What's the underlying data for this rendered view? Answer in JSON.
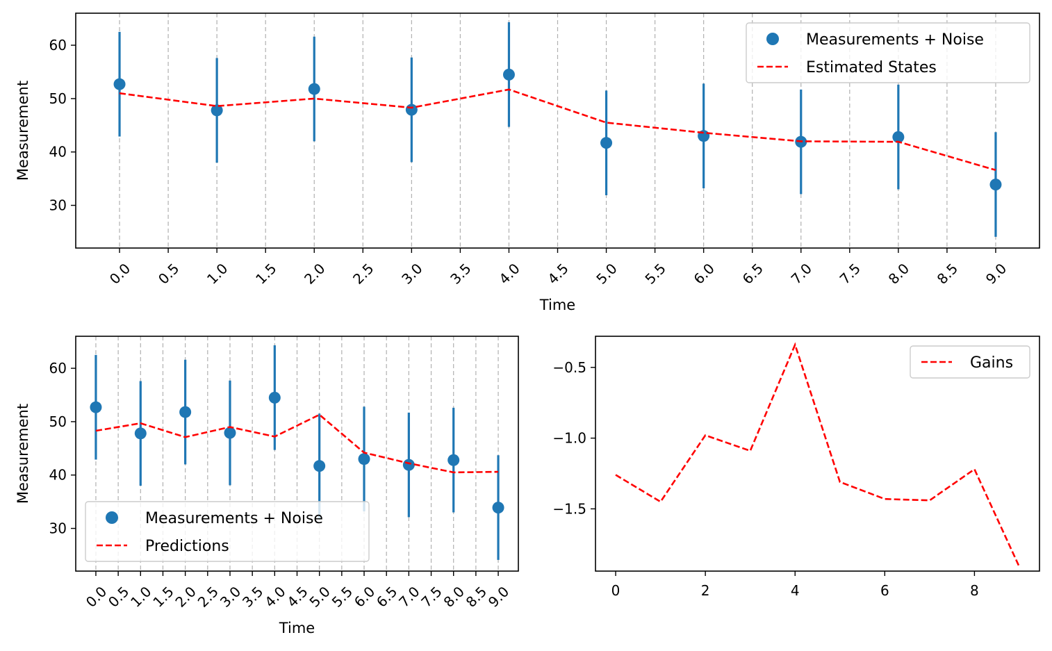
{
  "chart_data": [
    {
      "type": "scatter",
      "xlabel": "Time",
      "ylabel": "Measurement",
      "xlim": [
        -0.45,
        9.45
      ],
      "ylim": [
        22,
        66
      ],
      "xticks": [
        0.0,
        0.5,
        1.0,
        1.5,
        2.0,
        2.5,
        3.0,
        3.5,
        4.0,
        4.5,
        5.0,
        5.5,
        6.0,
        6.5,
        7.0,
        7.5,
        8.0,
        8.5,
        9.0
      ],
      "xtick_labels": [
        "0.0",
        "0.5",
        "1.0",
        "1.5",
        "2.0",
        "2.5",
        "3.0",
        "3.5",
        "4.0",
        "4.5",
        "5.0",
        "5.5",
        "6.0",
        "6.5",
        "7.0",
        "7.5",
        "8.0",
        "8.5",
        "9.0"
      ],
      "yticks": [
        30,
        40,
        50,
        60
      ],
      "ytick_labels": [
        "30",
        "40",
        "50",
        "60"
      ],
      "grid": "x-dashed",
      "legend_position": "top-right",
      "x": [
        0,
        1,
        2,
        3,
        4,
        5,
        6,
        7,
        8,
        9
      ],
      "series": [
        {
          "name": "Measurements + Noise",
          "kind": "scatter-errorbar",
          "color": "#1f77b4",
          "values": [
            52.7,
            47.8,
            51.8,
            47.9,
            54.5,
            41.7,
            43.0,
            41.9,
            42.8,
            33.9
          ],
          "error": 9.8
        },
        {
          "name": "Estimated States",
          "kind": "line-dashed",
          "color": "#ff0000",
          "values": [
            51.0,
            48.6,
            50.0,
            48.3,
            51.7,
            45.5,
            43.6,
            42.0,
            41.9,
            36.6
          ]
        }
      ]
    },
    {
      "type": "scatter",
      "xlabel": "Time",
      "ylabel": "Measurement",
      "xlim": [
        -0.45,
        9.45
      ],
      "ylim": [
        22,
        66
      ],
      "xticks": [
        0.0,
        0.5,
        1.0,
        1.5,
        2.0,
        2.5,
        3.0,
        3.5,
        4.0,
        4.5,
        5.0,
        5.5,
        6.0,
        6.5,
        7.0,
        7.5,
        8.0,
        8.5,
        9.0
      ],
      "xtick_labels": [
        "0.0",
        "0.5",
        "1.0",
        "1.5",
        "2.0",
        "2.5",
        "3.0",
        "3.5",
        "4.0",
        "4.5",
        "5.0",
        "5.5",
        "6.0",
        "6.5",
        "7.0",
        "7.5",
        "8.0",
        "8.5",
        "9.0"
      ],
      "yticks": [
        30,
        40,
        50,
        60
      ],
      "ytick_labels": [
        "30",
        "40",
        "50",
        "60"
      ],
      "grid": "x-dashed",
      "legend_position": "bottom-left",
      "x": [
        0,
        1,
        2,
        3,
        4,
        5,
        6,
        7,
        8,
        9
      ],
      "series": [
        {
          "name": "Measurements + Noise",
          "kind": "scatter-errorbar",
          "color": "#1f77b4",
          "values": [
            52.7,
            47.8,
            51.8,
            47.9,
            54.5,
            41.7,
            43.0,
            41.9,
            42.8,
            33.9
          ],
          "error": 9.8
        },
        {
          "name": "Predictions",
          "kind": "line-dashed",
          "color": "#ff0000",
          "values": [
            48.3,
            49.7,
            47.1,
            49.0,
            47.2,
            51.3,
            44.2,
            42.2,
            40.5,
            40.6
          ]
        }
      ]
    },
    {
      "type": "line",
      "xlabel": "",
      "ylabel": "",
      "xlim": [
        -0.45,
        9.45
      ],
      "ylim": [
        -1.94,
        -0.28
      ],
      "xticks": [
        0,
        2,
        4,
        6,
        8
      ],
      "xtick_labels": [
        "0",
        "2",
        "4",
        "6",
        "8"
      ],
      "yticks": [
        -0.5,
        -1.0,
        -1.5
      ],
      "ytick_labels": [
        "−0.5",
        "−1.0",
        "−1.5"
      ],
      "grid": "none",
      "legend_position": "top-right",
      "x": [
        0,
        1,
        2,
        3,
        4,
        5,
        6,
        7,
        8,
        9
      ],
      "series": [
        {
          "name": "Gains",
          "kind": "line-dashed",
          "color": "#ff0000",
          "values": [
            -1.26,
            -1.45,
            -0.98,
            -1.09,
            -0.34,
            -1.31,
            -1.43,
            -1.44,
            -1.22,
            -1.91
          ]
        }
      ]
    }
  ]
}
